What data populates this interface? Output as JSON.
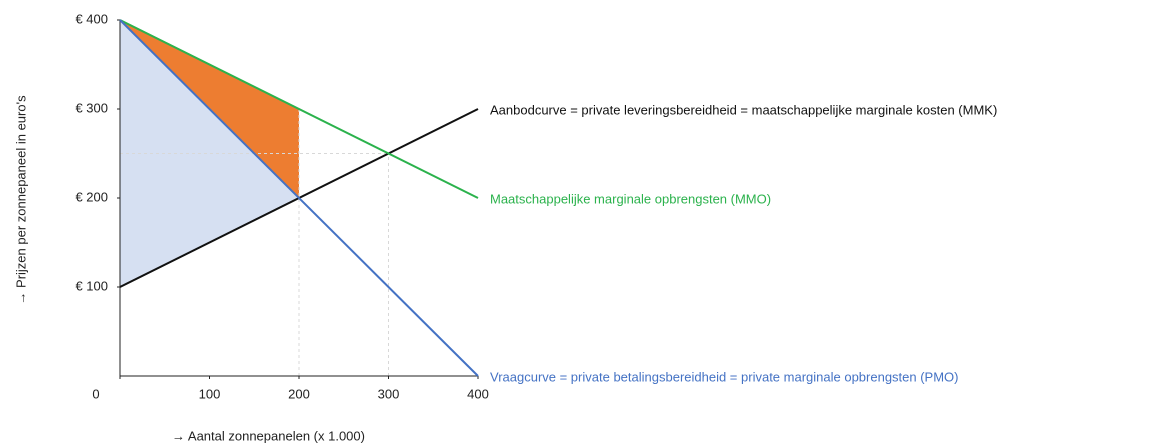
{
  "chart_data": {
    "type": "line",
    "x_label": "→ Aantal zonnepanelen (x 1.000)",
    "y_label": "→ Prijzen per zonnepaneel in euro's",
    "xlim": [
      0,
      400
    ],
    "ylim": [
      0,
      400
    ],
    "xticks": [
      0,
      100,
      200,
      300,
      400
    ],
    "yticks": [
      {
        "value": 100,
        "label": "€ 100"
      },
      {
        "value": 200,
        "label": "€ 200"
      },
      {
        "value": 300,
        "label": "€ 300"
      },
      {
        "value": 400,
        "label": "€ 400"
      }
    ],
    "series": [
      {
        "name": "Aanbodcurve = private leveringsbereidheid = maatschappelijke marginale kosten (MMK)",
        "color": "#111111",
        "x": [
          0,
          400
        ],
        "values": [
          100,
          300
        ]
      },
      {
        "name": "Maatschappelijke marginale opbrengsten (MMO)",
        "color": "#2bb24c",
        "x": [
          0,
          400
        ],
        "values": [
          400,
          200
        ]
      },
      {
        "name": "Vraagcurve = private betalingsbereidheid = private marginale opbrengsten (PMO)",
        "color": "#4472c4",
        "x": [
          0,
          400
        ],
        "values": [
          400,
          0
        ]
      }
    ],
    "shaded_regions": [
      {
        "color": "#d6e0f2",
        "x": [
          0,
          200,
          0
        ],
        "values": [
          400,
          200,
          100
        ]
      },
      {
        "color": "#ed7d31",
        "x": [
          0,
          200,
          200
        ],
        "values": [
          400,
          300,
          200
        ]
      }
    ],
    "reference_lines": [
      {
        "color": "#d8d8d8",
        "x": [
          200,
          200
        ],
        "values": [
          0,
          300
        ]
      },
      {
        "color": "#d8d8d8",
        "x": [
          300,
          300
        ],
        "values": [
          0,
          250
        ]
      },
      {
        "color": "#d8d8d8",
        "x": [
          0,
          300
        ],
        "values": [
          250,
          250
        ]
      }
    ]
  }
}
